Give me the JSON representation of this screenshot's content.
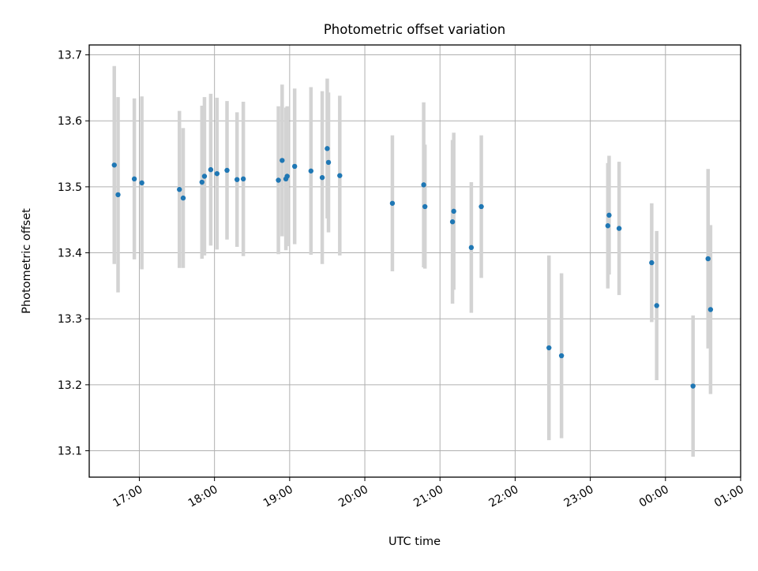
{
  "chart_data": {
    "type": "scatter",
    "title": "Photometric offset variation",
    "xlabel": "UTC time",
    "ylabel": "Photometric offset",
    "xlim": [
      "16:20",
      "01:00"
    ],
    "ylim": [
      13.06,
      13.715
    ],
    "grid": true,
    "x_ticks": [
      "17:00",
      "18:00",
      "19:00",
      "20:00",
      "21:00",
      "22:00",
      "23:00",
      "00:00",
      "01:00"
    ],
    "y_ticks": [
      "13.1",
      "13.2",
      "13.3",
      "13.4",
      "13.5",
      "13.6",
      "13.7"
    ],
    "point_color": "#1f77b4",
    "errorbar_color": "#d3d3d3",
    "series": [
      {
        "points": [
          {
            "x": "16:40",
            "y": 13.533,
            "yerr": 0.15
          },
          {
            "x": "16:43",
            "y": 13.488,
            "yerr": 0.148
          },
          {
            "x": "16:56",
            "y": 13.512,
            "yerr": 0.122
          },
          {
            "x": "17:02",
            "y": 13.506,
            "yerr": 0.131
          },
          {
            "x": "17:32",
            "y": 13.496,
            "yerr": 0.119
          },
          {
            "x": "17:35",
            "y": 13.483,
            "yerr": 0.106
          },
          {
            "x": "17:50",
            "y": 13.507,
            "yerr": 0.116
          },
          {
            "x": "17:52",
            "y": 13.516,
            "yerr": 0.12
          },
          {
            "x": "17:57",
            "y": 13.526,
            "yerr": 0.115
          },
          {
            "x": "18:02",
            "y": 13.52,
            "yerr": 0.115
          },
          {
            "x": "18:10",
            "y": 13.525,
            "yerr": 0.105
          },
          {
            "x": "18:18",
            "y": 13.511,
            "yerr": 0.102
          },
          {
            "x": "18:23",
            "y": 13.512,
            "yerr": 0.117
          },
          {
            "x": "18:51",
            "y": 13.51,
            "yerr": 0.112
          },
          {
            "x": "18:54",
            "y": 13.54,
            "yerr": 0.115
          },
          {
            "x": "18:57",
            "y": 13.512,
            "yerr": 0.108
          },
          {
            "x": "18:58",
            "y": 13.516,
            "yerr": 0.106
          },
          {
            "x": "19:04",
            "y": 13.531,
            "yerr": 0.118
          },
          {
            "x": "19:17",
            "y": 13.524,
            "yerr": 0.127
          },
          {
            "x": "19:26",
            "y": 13.514,
            "yerr": 0.131
          },
          {
            "x": "19:30",
            "y": 13.558,
            "yerr": 0.106
          },
          {
            "x": "19:31",
            "y": 13.537,
            "yerr": 0.106
          },
          {
            "x": "19:40",
            "y": 13.517,
            "yerr": 0.121
          },
          {
            "x": "20:22",
            "y": 13.475,
            "yerr": 0.103
          },
          {
            "x": "20:47",
            "y": 13.503,
            "yerr": 0.125
          },
          {
            "x": "20:48",
            "y": 13.47,
            "yerr": 0.094
          },
          {
            "x": "21:10",
            "y": 13.447,
            "yerr": 0.124
          },
          {
            "x": "21:11",
            "y": 13.463,
            "yerr": 0.119
          },
          {
            "x": "21:25",
            "y": 13.408,
            "yerr": 0.099
          },
          {
            "x": "21:33",
            "y": 13.47,
            "yerr": 0.108
          },
          {
            "x": "22:27",
            "y": 13.256,
            "yerr": 0.14
          },
          {
            "x": "22:37",
            "y": 13.244,
            "yerr": 0.125
          },
          {
            "x": "23:14",
            "y": 13.441,
            "yerr": 0.095
          },
          {
            "x": "23:15",
            "y": 13.457,
            "yerr": 0.09
          },
          {
            "x": "23:23",
            "y": 13.437,
            "yerr": 0.101
          },
          {
            "x": "23:49",
            "y": 13.385,
            "yerr": 0.09
          },
          {
            "x": "23:53",
            "y": 13.32,
            "yerr": 0.113
          },
          {
            "x": "00:22",
            "y": 13.198,
            "yerr": 0.107
          },
          {
            "x": "00:34",
            "y": 13.391,
            "yerr": 0.136
          },
          {
            "x": "00:36",
            "y": 13.314,
            "yerr": 0.128
          }
        ]
      }
    ]
  }
}
